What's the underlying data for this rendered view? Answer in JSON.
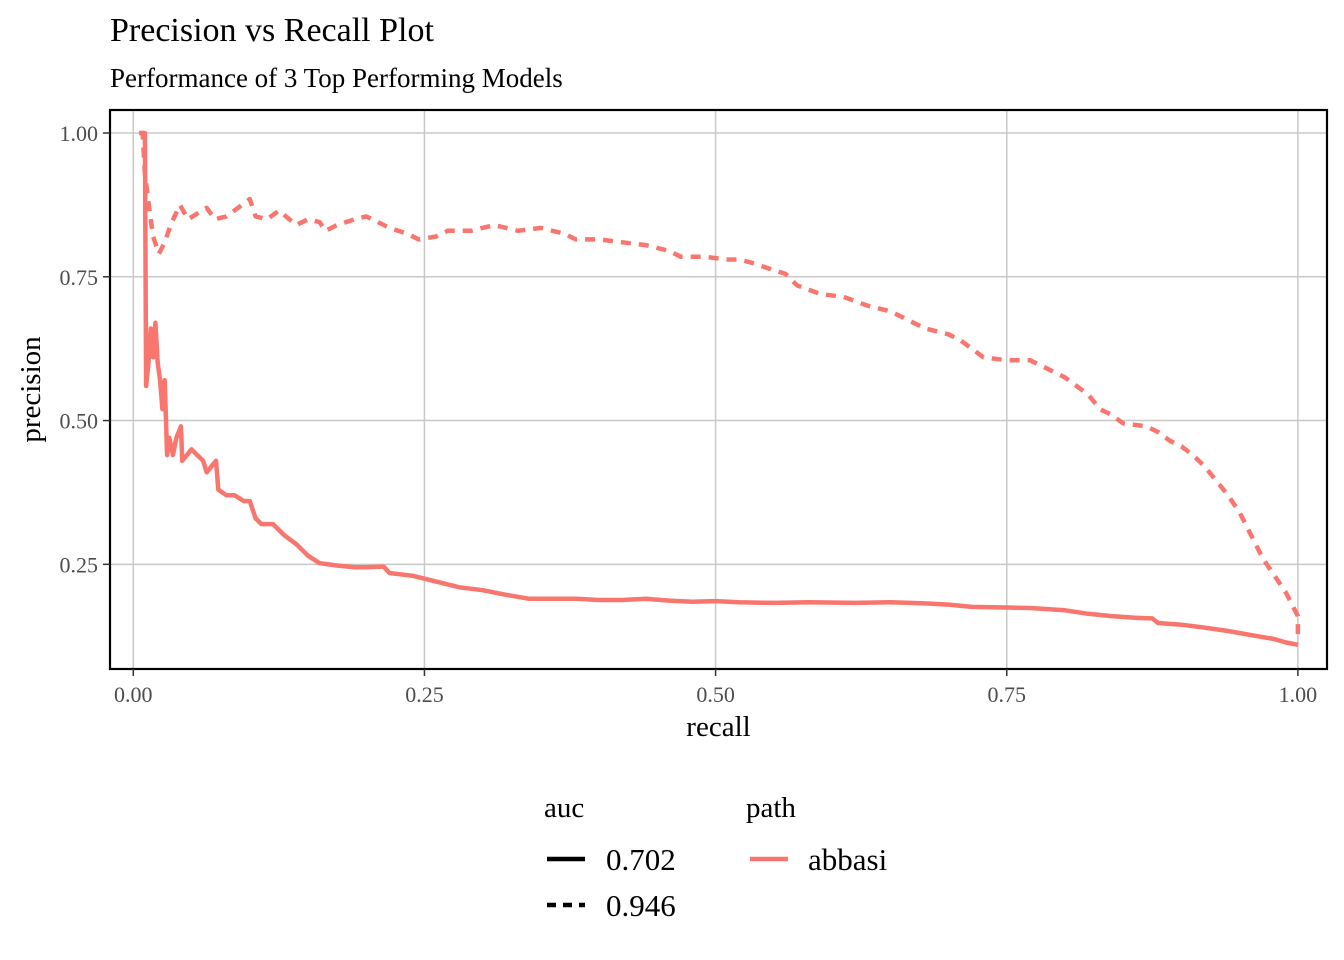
{
  "chart_data": {
    "type": "line",
    "title": "Precision vs Recall Plot",
    "subtitle": "Performance of 3 Top Performing Models",
    "xlabel": "recall",
    "ylabel": "precision",
    "xlim": [
      -0.02,
      1.025
    ],
    "ylim": [
      0.068,
      1.04
    ],
    "x_ticks": [
      0,
      0.25,
      0.5,
      0.75,
      1
    ],
    "x_tick_labels": [
      "0.00",
      "0.25",
      "0.50",
      "0.75",
      "1.00"
    ],
    "y_ticks": [
      0.25,
      0.5,
      0.75,
      1
    ],
    "y_tick_labels": [
      "0.25",
      "0.50",
      "0.75",
      "1.00"
    ],
    "grid": true,
    "line_color": "#F8766D",
    "series": [
      {
        "auc": "0.702",
        "path": "abbasi",
        "linetype": "solid",
        "points": [
          [
            0.007,
            1.0
          ],
          [
            0.01,
            1.0
          ],
          [
            0.011,
            0.56
          ],
          [
            0.013,
            0.6
          ],
          [
            0.015,
            0.66
          ],
          [
            0.017,
            0.61
          ],
          [
            0.019,
            0.67
          ],
          [
            0.021,
            0.6
          ],
          [
            0.023,
            0.57
          ],
          [
            0.025,
            0.52
          ],
          [
            0.027,
            0.57
          ],
          [
            0.029,
            0.44
          ],
          [
            0.031,
            0.47
          ],
          [
            0.034,
            0.44
          ],
          [
            0.037,
            0.47
          ],
          [
            0.039,
            0.48
          ],
          [
            0.041,
            0.49
          ],
          [
            0.042,
            0.43
          ],
          [
            0.046,
            0.44
          ],
          [
            0.05,
            0.45
          ],
          [
            0.055,
            0.44
          ],
          [
            0.06,
            0.43
          ],
          [
            0.063,
            0.41
          ],
          [
            0.067,
            0.42
          ],
          [
            0.071,
            0.43
          ],
          [
            0.073,
            0.38
          ],
          [
            0.08,
            0.37
          ],
          [
            0.087,
            0.37
          ],
          [
            0.095,
            0.36
          ],
          [
            0.1,
            0.36
          ],
          [
            0.105,
            0.33
          ],
          [
            0.11,
            0.32
          ],
          [
            0.12,
            0.32
          ],
          [
            0.13,
            0.3
          ],
          [
            0.14,
            0.285
          ],
          [
            0.15,
            0.265
          ],
          [
            0.16,
            0.252
          ],
          [
            0.175,
            0.248
          ],
          [
            0.19,
            0.245
          ],
          [
            0.2,
            0.245
          ],
          [
            0.215,
            0.246
          ],
          [
            0.22,
            0.235
          ],
          [
            0.24,
            0.23
          ],
          [
            0.26,
            0.22
          ],
          [
            0.28,
            0.21
          ],
          [
            0.3,
            0.205
          ],
          [
            0.32,
            0.197
          ],
          [
            0.34,
            0.19
          ],
          [
            0.36,
            0.19
          ],
          [
            0.38,
            0.19
          ],
          [
            0.4,
            0.188
          ],
          [
            0.42,
            0.188
          ],
          [
            0.44,
            0.19
          ],
          [
            0.46,
            0.187
          ],
          [
            0.48,
            0.185
          ],
          [
            0.5,
            0.186
          ],
          [
            0.52,
            0.184
          ],
          [
            0.55,
            0.183
          ],
          [
            0.58,
            0.184
          ],
          [
            0.62,
            0.183
          ],
          [
            0.65,
            0.184
          ],
          [
            0.68,
            0.182
          ],
          [
            0.7,
            0.18
          ],
          [
            0.72,
            0.176
          ],
          [
            0.75,
            0.175
          ],
          [
            0.77,
            0.174
          ],
          [
            0.8,
            0.17
          ],
          [
            0.82,
            0.164
          ],
          [
            0.84,
            0.16
          ],
          [
            0.86,
            0.157
          ],
          [
            0.875,
            0.156
          ],
          [
            0.88,
            0.148
          ],
          [
            0.9,
            0.145
          ],
          [
            0.92,
            0.14
          ],
          [
            0.94,
            0.134
          ],
          [
            0.96,
            0.127
          ],
          [
            0.98,
            0.12
          ],
          [
            0.99,
            0.114
          ],
          [
            1.0,
            0.11
          ]
        ]
      },
      {
        "auc": "0.946",
        "path": "abbasi",
        "linetype": "dashed",
        "points": [
          [
            0.005,
            1.0
          ],
          [
            0.008,
            1.0
          ],
          [
            0.01,
            0.93
          ],
          [
            0.013,
            0.88
          ],
          [
            0.017,
            0.82
          ],
          [
            0.022,
            0.79
          ],
          [
            0.027,
            0.81
          ],
          [
            0.032,
            0.84
          ],
          [
            0.04,
            0.875
          ],
          [
            0.047,
            0.85
          ],
          [
            0.055,
            0.86
          ],
          [
            0.063,
            0.87
          ],
          [
            0.07,
            0.85
          ],
          [
            0.08,
            0.855
          ],
          [
            0.09,
            0.87
          ],
          [
            0.1,
            0.885
          ],
          [
            0.105,
            0.855
          ],
          [
            0.115,
            0.85
          ],
          [
            0.125,
            0.865
          ],
          [
            0.14,
            0.84
          ],
          [
            0.15,
            0.85
          ],
          [
            0.16,
            0.845
          ],
          [
            0.165,
            0.83
          ],
          [
            0.175,
            0.84
          ],
          [
            0.19,
            0.85
          ],
          [
            0.2,
            0.855
          ],
          [
            0.21,
            0.845
          ],
          [
            0.22,
            0.835
          ],
          [
            0.235,
            0.825
          ],
          [
            0.245,
            0.815
          ],
          [
            0.26,
            0.82
          ],
          [
            0.27,
            0.83
          ],
          [
            0.29,
            0.83
          ],
          [
            0.31,
            0.84
          ],
          [
            0.33,
            0.83
          ],
          [
            0.35,
            0.835
          ],
          [
            0.36,
            0.83
          ],
          [
            0.37,
            0.825
          ],
          [
            0.38,
            0.815
          ],
          [
            0.4,
            0.815
          ],
          [
            0.42,
            0.81
          ],
          [
            0.44,
            0.805
          ],
          [
            0.45,
            0.8
          ],
          [
            0.46,
            0.795
          ],
          [
            0.47,
            0.785
          ],
          [
            0.49,
            0.785
          ],
          [
            0.51,
            0.78
          ],
          [
            0.52,
            0.78
          ],
          [
            0.53,
            0.775
          ],
          [
            0.545,
            0.765
          ],
          [
            0.56,
            0.755
          ],
          [
            0.57,
            0.735
          ],
          [
            0.59,
            0.72
          ],
          [
            0.61,
            0.715
          ],
          [
            0.63,
            0.7
          ],
          [
            0.65,
            0.69
          ],
          [
            0.66,
            0.68
          ],
          [
            0.67,
            0.67
          ],
          [
            0.68,
            0.66
          ],
          [
            0.7,
            0.65
          ],
          [
            0.71,
            0.64
          ],
          [
            0.72,
            0.625
          ],
          [
            0.73,
            0.61
          ],
          [
            0.75,
            0.605
          ],
          [
            0.77,
            0.605
          ],
          [
            0.78,
            0.595
          ],
          [
            0.79,
            0.585
          ],
          [
            0.8,
            0.575
          ],
          [
            0.81,
            0.56
          ],
          [
            0.82,
            0.545
          ],
          [
            0.83,
            0.52
          ],
          [
            0.84,
            0.51
          ],
          [
            0.85,
            0.495
          ],
          [
            0.87,
            0.49
          ],
          [
            0.88,
            0.48
          ],
          [
            0.89,
            0.465
          ],
          [
            0.9,
            0.455
          ],
          [
            0.91,
            0.44
          ],
          [
            0.92,
            0.42
          ],
          [
            0.93,
            0.395
          ],
          [
            0.94,
            0.37
          ],
          [
            0.95,
            0.34
          ],
          [
            0.96,
            0.3
          ],
          [
            0.97,
            0.26
          ],
          [
            0.98,
            0.23
          ],
          [
            0.99,
            0.2
          ],
          [
            1.0,
            0.16
          ],
          [
            1.0,
            0.12
          ]
        ]
      }
    ],
    "legend": {
      "placement": "bottom",
      "groups": [
        {
          "title": "auc",
          "entries": [
            {
              "label": "0.702",
              "linetype": "solid"
            },
            {
              "label": "0.946",
              "linetype": "dashed"
            }
          ]
        },
        {
          "title": "path",
          "entries": [
            {
              "label": "abbasi",
              "color": "#F8766D"
            }
          ]
        }
      ]
    }
  }
}
